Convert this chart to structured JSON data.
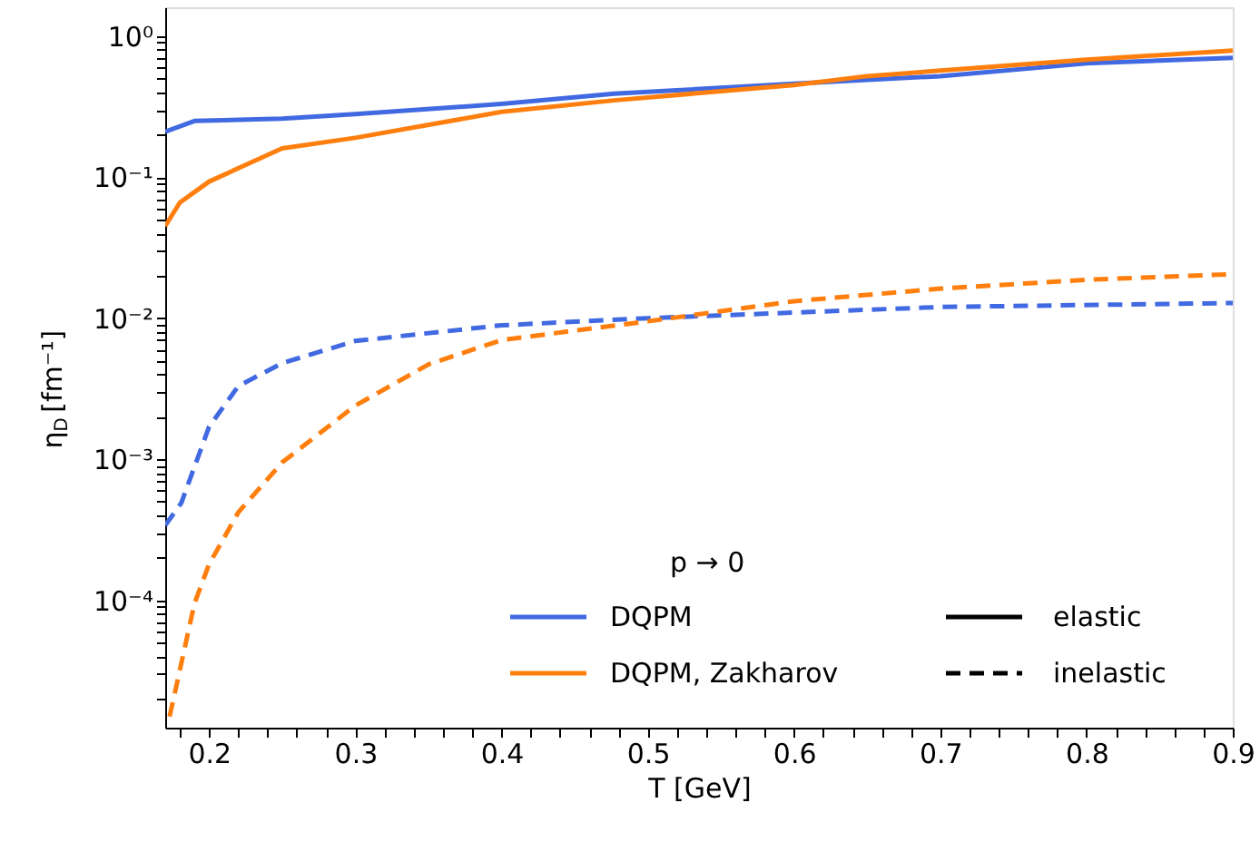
{
  "chart_data": {
    "type": "line",
    "xlabel": "T [GeV]",
    "ylabel": "η$_{D}$ [fm⁻¹]",
    "log": "y",
    "grid": false,
    "legend": "bottom right",
    "legend_title": "p → 0",
    "annotations": [
      "elastic",
      "inelastic"
    ],
    "marker": "none",
    "xlim": [
      0.17,
      0.9
    ],
    "ylim": [
      1.25e-05,
      1.6
    ],
    "xticks": [
      {
        "value": 0.18,
        "label": null
      },
      0.2,
      {
        "value": 0.22,
        "label": null
      },
      {
        "value": 0.24,
        "label": null
      },
      {
        "value": 0.26,
        "label": null
      },
      {
        "value": 0.28,
        "label": null
      },
      0.3,
      {
        "value": 0.32,
        "label": null
      },
      {
        "value": 0.34,
        "label": null
      },
      {
        "value": 0.36,
        "label": null
      },
      {
        "value": 0.38,
        "label": null
      },
      0.4,
      {
        "value": 0.42,
        "label": null
      },
      {
        "value": 0.44,
        "label": null
      },
      {
        "value": 0.46,
        "label": null
      },
      {
        "value": 0.48,
        "label": null
      },
      0.5,
      {
        "value": 0.52,
        "label": null
      },
      {
        "value": 0.54,
        "label": null
      },
      {
        "value": 0.56,
        "label": null
      },
      {
        "value": 0.58,
        "label": null
      },
      0.6,
      {
        "value": 0.62,
        "label": null
      },
      {
        "value": 0.64,
        "label": null
      },
      {
        "value": 0.66,
        "label": null
      },
      {
        "value": 0.68,
        "label": null
      },
      0.7,
      {
        "value": 0.72,
        "label": null
      },
      {
        "value": 0.74,
        "label": null
      },
      {
        "value": 0.76,
        "label": null
      },
      {
        "value": 0.78,
        "label": null
      },
      0.8,
      {
        "value": 0.82,
        "label": null
      },
      {
        "value": 0.84,
        "label": null
      },
      {
        "value": 0.86,
        "label": null
      },
      {
        "value": 0.88,
        "label": null
      },
      0.9
    ],
    "yticks": [
      {
        "value": 2e-05,
        "label": null
      },
      {
        "value": 3e-05,
        "label": null
      },
      {
        "value": 4e-05,
        "label": null
      },
      {
        "value": 5e-05,
        "label": null
      },
      {
        "value": 6e-05,
        "label": null
      },
      {
        "value": 7e-05,
        "label": null
      },
      {
        "value": 8e-05,
        "label": null
      },
      {
        "value": 9e-05,
        "label": null
      },
      {
        "value": 0.0001,
        "label": "10⁻⁴"
      },
      {
        "value": 0.0002,
        "label": null
      },
      {
        "value": 0.0003,
        "label": null
      },
      {
        "value": 0.0004,
        "label": null
      },
      {
        "value": 0.0005,
        "label": null
      },
      {
        "value": 0.0006,
        "label": null
      },
      {
        "value": 0.0007,
        "label": null
      },
      {
        "value": 0.0008,
        "label": null
      },
      {
        "value": 0.0009,
        "label": null
      },
      {
        "value": 0.001,
        "label": "10⁻³"
      },
      {
        "value": 0.002,
        "label": null
      },
      {
        "value": 0.003,
        "label": null
      },
      {
        "value": 0.004,
        "label": null
      },
      {
        "value": 0.005,
        "label": null
      },
      {
        "value": 0.006,
        "label": null
      },
      {
        "value": 0.007,
        "label": null
      },
      {
        "value": 0.008,
        "label": null
      },
      {
        "value": 0.009,
        "label": null
      },
      {
        "value": 0.01,
        "label": "10⁻²"
      },
      {
        "value": 0.02,
        "label": null
      },
      {
        "value": 0.03,
        "label": null
      },
      {
        "value": 0.04,
        "label": null
      },
      {
        "value": 0.05,
        "label": null
      },
      {
        "value": 0.06,
        "label": null
      },
      {
        "value": 0.07,
        "label": null
      },
      {
        "value": 0.08,
        "label": null
      },
      {
        "value": 0.09,
        "label": null
      },
      {
        "value": 0.1,
        "label": "10⁻¹"
      },
      {
        "value": 0.2,
        "label": null
      },
      {
        "value": 0.3,
        "label": null
      },
      {
        "value": 0.4,
        "label": null
      },
      {
        "value": 0.5,
        "label": null
      },
      {
        "value": 0.6,
        "label": null
      },
      {
        "value": 0.7,
        "label": null
      },
      {
        "value": 0.8,
        "label": null
      },
      {
        "value": 0.9,
        "label": null
      },
      {
        "value": 1,
        "label": "10⁰"
      }
    ],
    "series": [
      {
        "name": "DQPM",
        "color": "#4169e1",
        "line_style": "solid",
        "x": [
          0.17,
          0.19,
          0.25,
          0.3,
          0.4,
          0.477,
          0.6,
          0.7,
          0.8,
          0.9
        ],
        "values": [
          0.21,
          0.25,
          0.26,
          0.28,
          0.33,
          0.39,
          0.46,
          0.52,
          0.64,
          0.7
        ]
      },
      {
        "color": "#4169e1",
        "line_style": "dashed",
        "x": [
          0.17,
          0.181,
          0.2,
          0.22,
          0.25,
          0.3,
          0.4,
          0.5,
          0.7,
          0.9
        ],
        "values": [
          0.00034,
          0.00049,
          0.0017,
          0.0033,
          0.0048,
          0.0069,
          0.0089,
          0.01,
          0.012,
          0.0128
        ]
      },
      {
        "name": "DQPM, Zakharov",
        "color": "#ff7f0e",
        "line_style": "solid",
        "x": [
          0.17,
          0.18,
          0.2,
          0.25,
          0.3,
          0.4,
          0.477,
          0.6,
          0.65,
          0.8,
          0.9
        ],
        "values": [
          0.045,
          0.066,
          0.093,
          0.16,
          0.19,
          0.29,
          0.35,
          0.45,
          0.52,
          0.68,
          0.79
        ]
      },
      {
        "color": "#ff7f0e",
        "line_style": "dashed",
        "x": [
          0.173,
          0.18,
          0.19,
          0.2,
          0.22,
          0.25,
          0.3,
          0.35,
          0.4,
          0.5,
          0.6,
          0.7,
          0.8,
          0.9
        ],
        "values": [
          1.5e-05,
          3.2e-05,
          9.5e-05,
          0.00018,
          0.00042,
          0.00095,
          0.0024,
          0.0047,
          0.007,
          0.0095,
          0.0132,
          0.0162,
          0.0187,
          0.0205
        ]
      }
    ]
  }
}
